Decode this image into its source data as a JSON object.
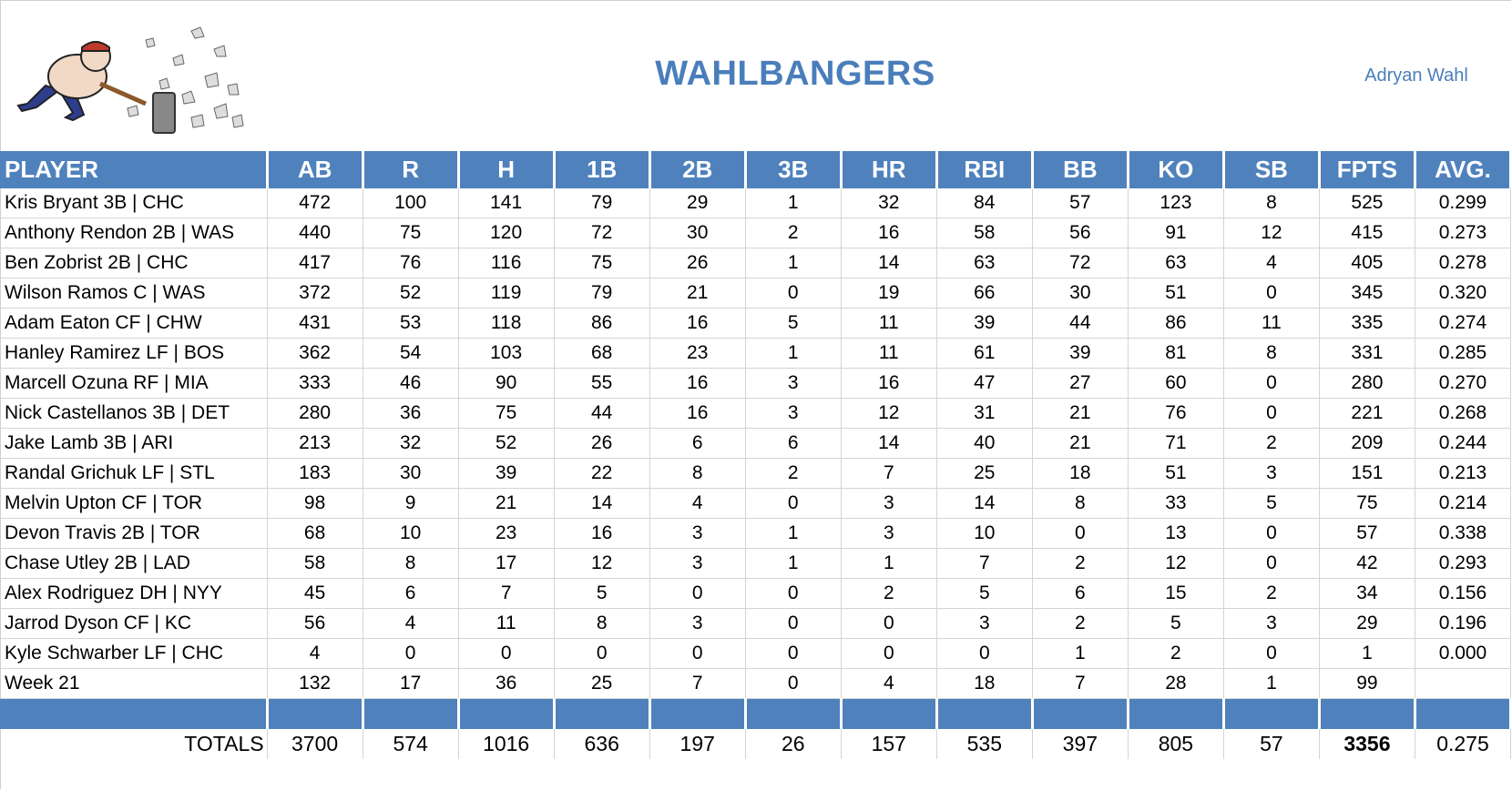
{
  "header": {
    "team_name": "WAHLBANGERS",
    "owner": "Adryan Wahl",
    "accent_color": "#4f81bd",
    "title_color": "#4a7ebb",
    "logo": "cartoon-man-swinging-sledgehammer"
  },
  "table": {
    "columns": [
      "PLAYER",
      "AB",
      "R",
      "H",
      "1B",
      "2B",
      "3B",
      "HR",
      "RBI",
      "BB",
      "KO",
      "SB",
      "FPTS",
      "AVG."
    ],
    "rows": [
      [
        "Kris Bryant 3B | CHC",
        "472",
        "100",
        "141",
        "79",
        "29",
        "1",
        "32",
        "84",
        "57",
        "123",
        "8",
        "525",
        "0.299"
      ],
      [
        "Anthony Rendon 2B | WAS",
        "440",
        "75",
        "120",
        "72",
        "30",
        "2",
        "16",
        "58",
        "56",
        "91",
        "12",
        "415",
        "0.273"
      ],
      [
        "Ben Zobrist 2B | CHC",
        "417",
        "76",
        "116",
        "75",
        "26",
        "1",
        "14",
        "63",
        "72",
        "63",
        "4",
        "405",
        "0.278"
      ],
      [
        "Wilson Ramos C | WAS",
        "372",
        "52",
        "119",
        "79",
        "21",
        "0",
        "19",
        "66",
        "30",
        "51",
        "0",
        "345",
        "0.320"
      ],
      [
        "Adam Eaton CF | CHW",
        "431",
        "53",
        "118",
        "86",
        "16",
        "5",
        "11",
        "39",
        "44",
        "86",
        "11",
        "335",
        "0.274"
      ],
      [
        "Hanley Ramirez LF | BOS",
        "362",
        "54",
        "103",
        "68",
        "23",
        "1",
        "11",
        "61",
        "39",
        "81",
        "8",
        "331",
        "0.285"
      ],
      [
        "Marcell Ozuna RF | MIA",
        "333",
        "46",
        "90",
        "55",
        "16",
        "3",
        "16",
        "47",
        "27",
        "60",
        "0",
        "280",
        "0.270"
      ],
      [
        "Nick Castellanos 3B | DET",
        "280",
        "36",
        "75",
        "44",
        "16",
        "3",
        "12",
        "31",
        "21",
        "76",
        "0",
        "221",
        "0.268"
      ],
      [
        "Jake Lamb 3B | ARI",
        "213",
        "32",
        "52",
        "26",
        "6",
        "6",
        "14",
        "40",
        "21",
        "71",
        "2",
        "209",
        "0.244"
      ],
      [
        "Randal Grichuk LF | STL",
        "183",
        "30",
        "39",
        "22",
        "8",
        "2",
        "7",
        "25",
        "18",
        "51",
        "3",
        "151",
        "0.213"
      ],
      [
        "Melvin Upton CF | TOR",
        "98",
        "9",
        "21",
        "14",
        "4",
        "0",
        "3",
        "14",
        "8",
        "33",
        "5",
        "75",
        "0.214"
      ],
      [
        "Devon Travis 2B | TOR",
        "68",
        "10",
        "23",
        "16",
        "3",
        "1",
        "3",
        "10",
        "0",
        "13",
        "0",
        "57",
        "0.338"
      ],
      [
        "Chase Utley 2B | LAD",
        "58",
        "8",
        "17",
        "12",
        "3",
        "1",
        "1",
        "7",
        "2",
        "12",
        "0",
        "42",
        "0.293"
      ],
      [
        "Alex Rodriguez DH | NYY",
        "45",
        "6",
        "7",
        "5",
        "0",
        "0",
        "2",
        "5",
        "6",
        "15",
        "2",
        "34",
        "0.156"
      ],
      [
        "Jarrod Dyson CF | KC",
        "56",
        "4",
        "11",
        "8",
        "3",
        "0",
        "0",
        "3",
        "2",
        "5",
        "3",
        "29",
        "0.196"
      ],
      [
        "Kyle Schwarber LF | CHC",
        "4",
        "0",
        "0",
        "0",
        "0",
        "0",
        "0",
        "0",
        "1",
        "2",
        "0",
        "1",
        "0.000"
      ],
      [
        "Week 21",
        "132",
        "17",
        "36",
        "25",
        "7",
        "0",
        "4",
        "18",
        "7",
        "28",
        "1",
        "99",
        ""
      ]
    ],
    "totals": [
      "TOTALS",
      "3700",
      "574",
      "1016",
      "636",
      "197",
      "26",
      "157",
      "535",
      "397",
      "805",
      "57",
      "3356",
      "0.275"
    ]
  }
}
